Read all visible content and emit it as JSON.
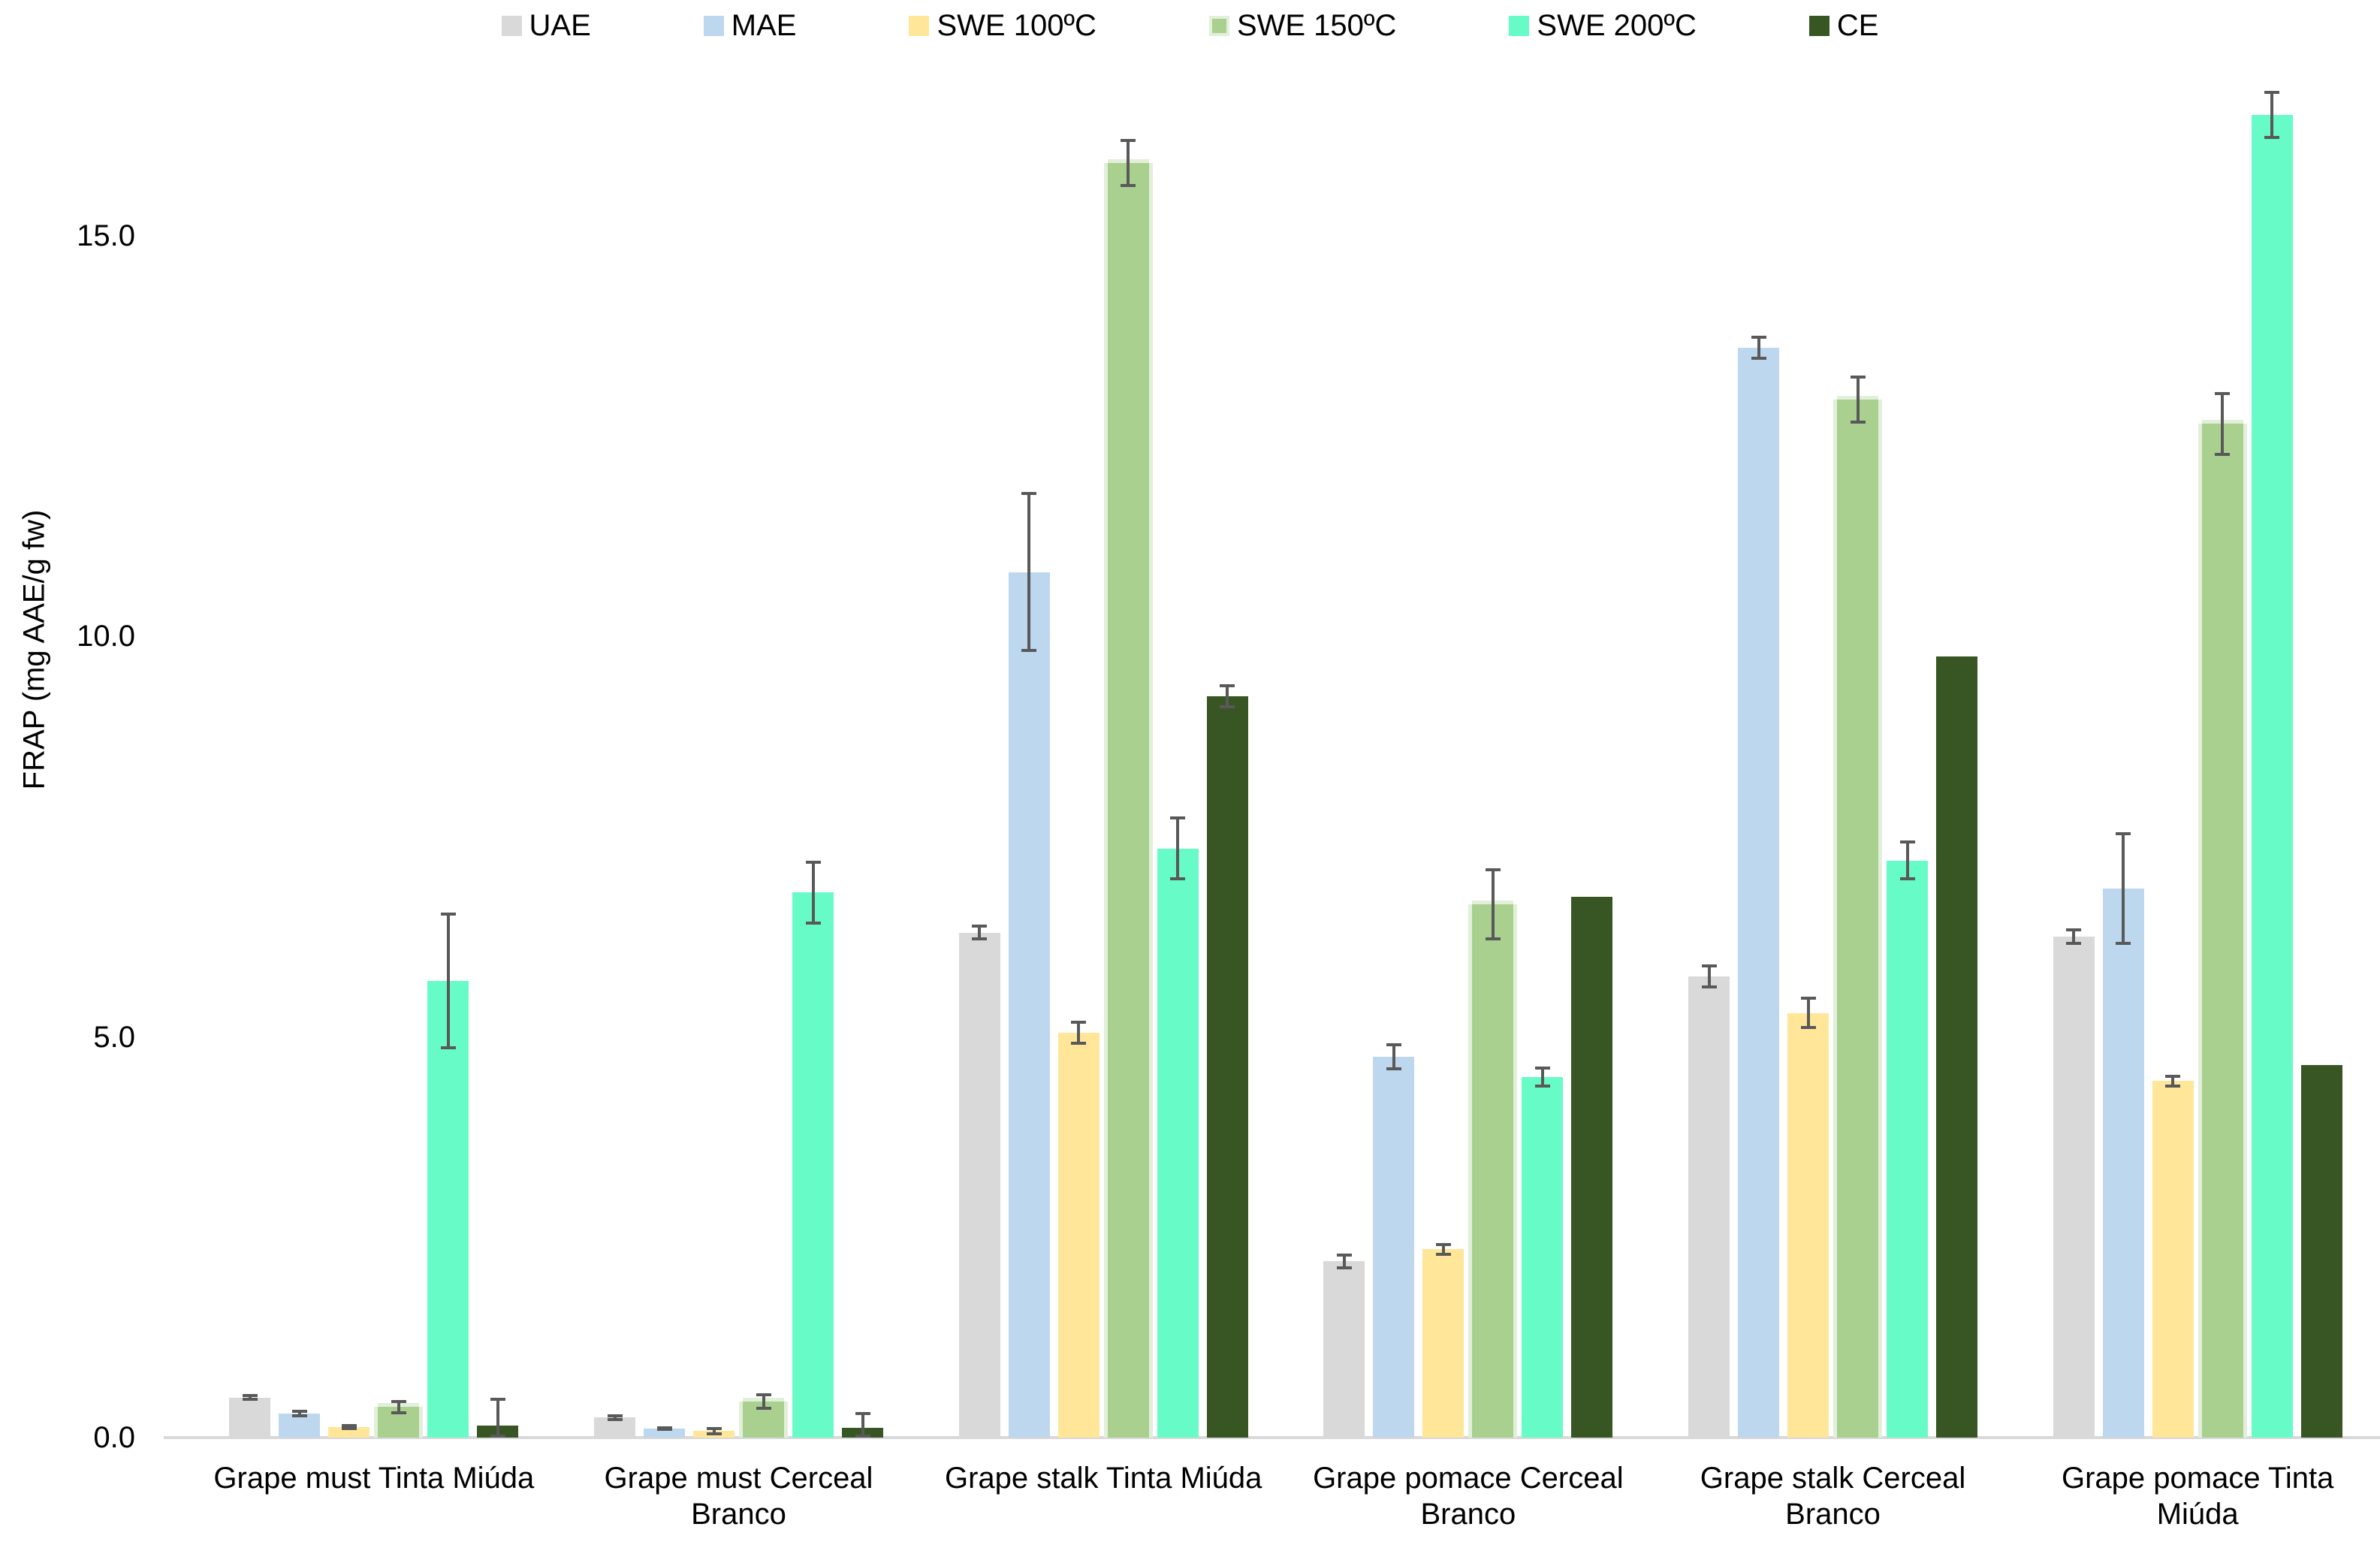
{
  "chart_data": {
    "type": "bar",
    "title": "",
    "xlabel": "",
    "ylabel": "FRAP (mg AAE/g fw)",
    "ylim": [
      0,
      17.9
    ],
    "yticks": [
      0,
      5,
      10,
      15
    ],
    "ytick_labels": [
      "0.0",
      "5.0",
      "10.0",
      "15.0"
    ],
    "grid": false,
    "legend_position": "top-center",
    "axis_line_color": "#d9d9d9",
    "error_bar_color": "#595959",
    "categories": [
      "Grape must Tinta Miúda",
      "Grape must Cerceal Branco",
      "Grape stalk Tinta Miúda",
      "Grape pomace Cerceal Branco",
      "Grape stalk Cerceal Branco",
      "Grape pomace Tinta Miúda"
    ],
    "series": [
      {
        "name": "UAE",
        "color": "#d9d9d9",
        "values": [
          0.5,
          0.25,
          6.3,
          2.2,
          5.75,
          6.25
        ],
        "errors": [
          0.04,
          0.04,
          0.1,
          0.1,
          0.15,
          0.1
        ]
      },
      {
        "name": "MAE",
        "color": "#bdd7ee",
        "values": [
          0.3,
          0.11,
          10.8,
          4.75,
          13.6,
          6.85
        ],
        "errors": [
          0.05,
          0.03,
          1.0,
          0.17,
          0.15,
          0.7
        ]
      },
      {
        "name": "SWE 100ºC",
        "color": "#ffe699",
        "values": [
          0.13,
          0.08,
          5.05,
          2.35,
          5.3,
          4.45
        ],
        "errors": [
          0.04,
          0.05,
          0.15,
          0.08,
          0.2,
          0.08
        ]
      },
      {
        "name": "SWE 150ºC",
        "color": "#a9d08e",
        "edge": "#e2efda",
        "values": [
          0.38,
          0.45,
          15.9,
          6.65,
          12.95,
          12.65
        ],
        "errors": [
          0.09,
          0.1,
          0.3,
          0.45,
          0.3,
          0.4
        ]
      },
      {
        "name": "SWE 200ºC",
        "color": "#66fbc7",
        "values": [
          5.7,
          6.8,
          7.35,
          4.5,
          7.2,
          16.5
        ],
        "errors": [
          0.85,
          0.4,
          0.4,
          0.13,
          0.25,
          0.3
        ]
      },
      {
        "name": "CE",
        "color": "#375623",
        "values": [
          0.15,
          0.12,
          9.25,
          6.75,
          9.75,
          4.65
        ],
        "errors": [
          0.25,
          0.16,
          0.15,
          0,
          0,
          0
        ]
      }
    ]
  }
}
